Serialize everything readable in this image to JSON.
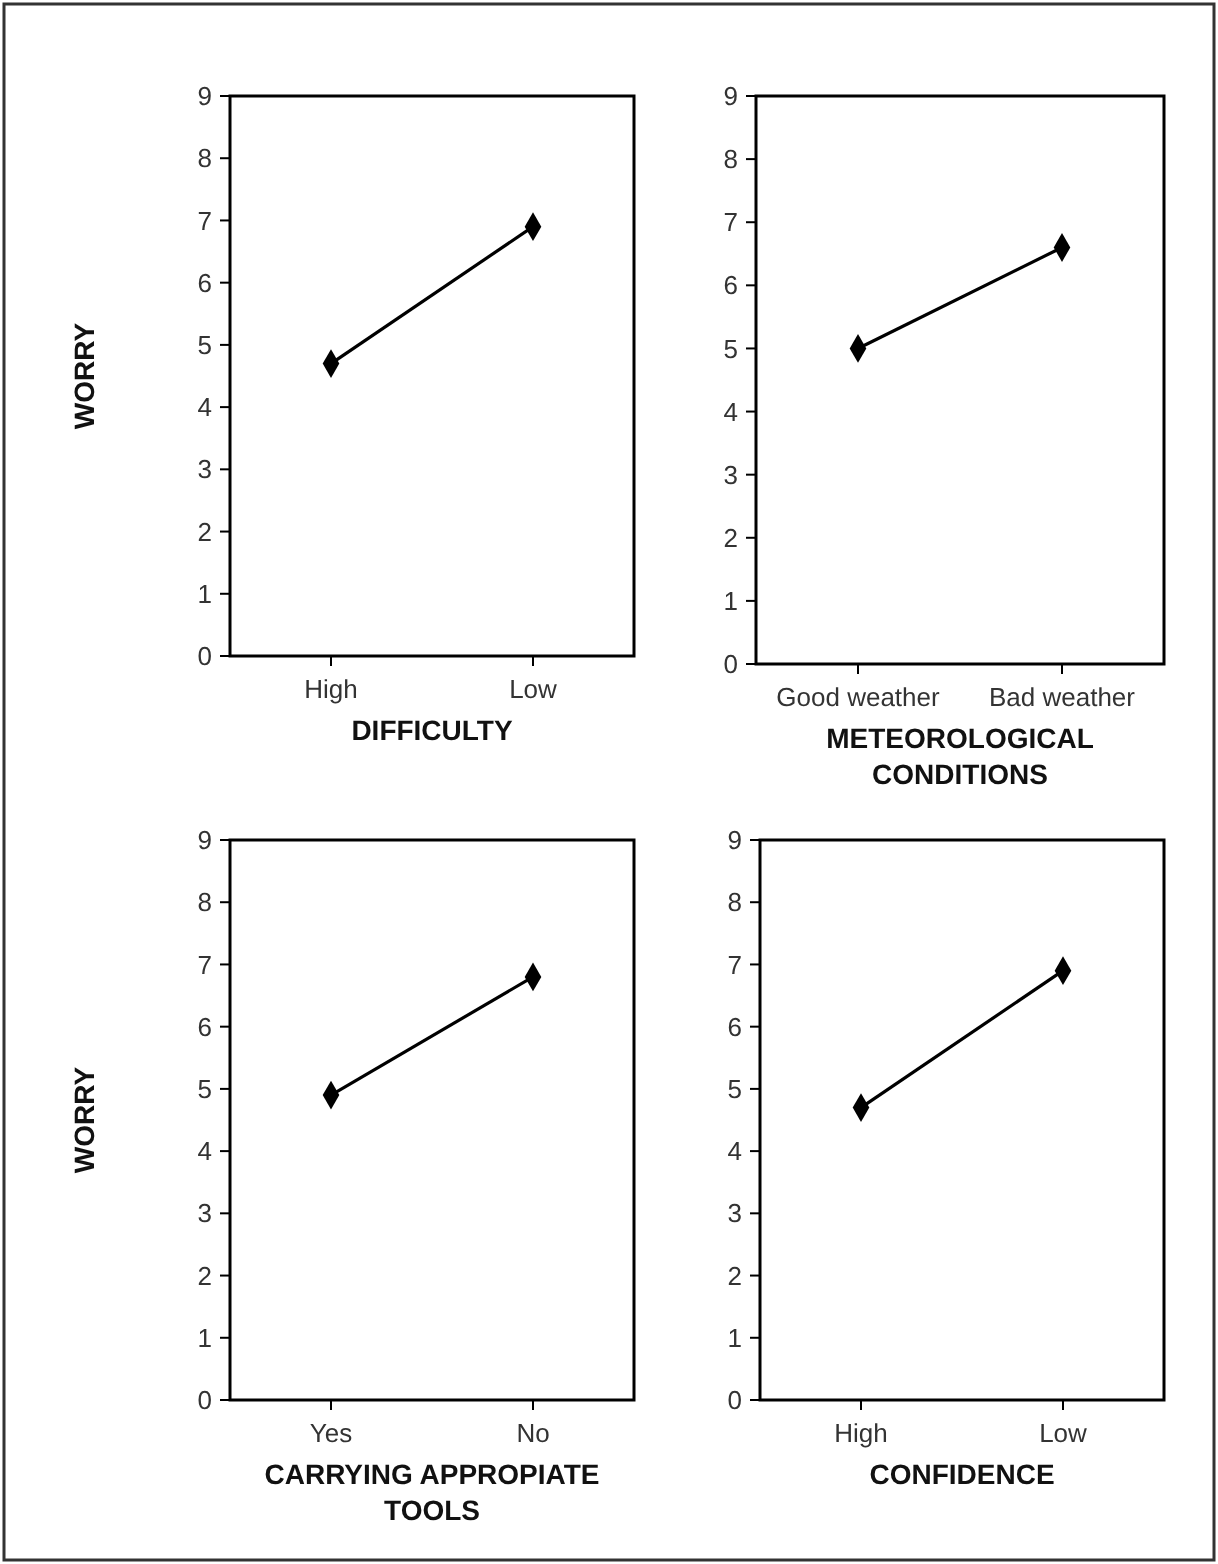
{
  "chart_data": [
    {
      "type": "line",
      "ylabel": "WORRY",
      "xlabel": "DIFFICULTY",
      "categories": [
        "High",
        "Low"
      ],
      "series": [
        {
          "color": "#000000",
          "values": [
            4.7,
            6.9
          ]
        }
      ],
      "ylim": [
        0,
        9
      ],
      "yticks": [
        0,
        1,
        2,
        3,
        4,
        5,
        6,
        7,
        8,
        9
      ],
      "marker": "diamond"
    },
    {
      "type": "line",
      "xlabel": "METEOROLOGICAL CONDITIONS",
      "categories": [
        "Good weather",
        "Bad weather"
      ],
      "series": [
        {
          "color": "#000000",
          "values": [
            5.0,
            6.6
          ]
        }
      ],
      "ylim": [
        0,
        9
      ],
      "yticks": [
        0,
        1,
        2,
        3,
        4,
        5,
        6,
        7,
        8,
        9
      ],
      "marker": "diamond"
    },
    {
      "type": "line",
      "ylabel": "WORRY",
      "xlabel": "CARRYING APPROPIATE TOOLS",
      "categories": [
        "Yes",
        "No"
      ],
      "series": [
        {
          "color": "#000000",
          "values": [
            4.9,
            6.8
          ]
        }
      ],
      "ylim": [
        0,
        9
      ],
      "yticks": [
        0,
        1,
        2,
        3,
        4,
        5,
        6,
        7,
        8,
        9
      ],
      "marker": "diamond"
    },
    {
      "type": "line",
      "xlabel": "CONFIDENCE",
      "categories": [
        "High",
        "Low"
      ],
      "series": [
        {
          "color": "#000000",
          "values": [
            4.7,
            6.9
          ]
        }
      ],
      "ylim": [
        0,
        9
      ],
      "yticks": [
        0,
        1,
        2,
        3,
        4,
        5,
        6,
        7,
        8,
        9
      ],
      "marker": "diamond"
    }
  ]
}
